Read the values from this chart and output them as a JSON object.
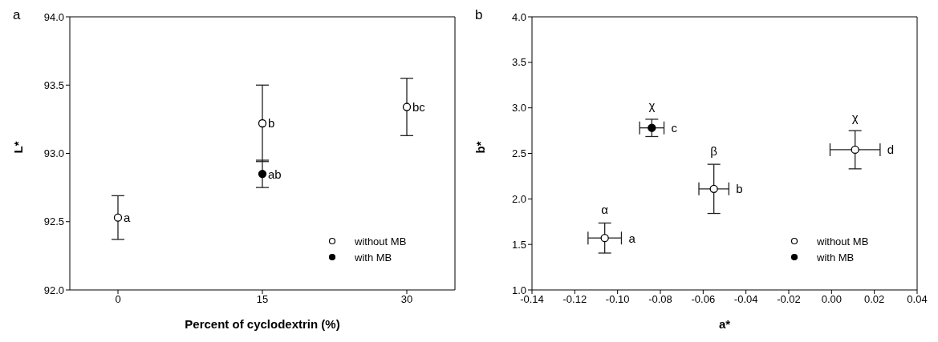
{
  "chart_data": [
    {
      "type": "scatter",
      "xlabel": "Percent of cyclodextrin (%)",
      "ylabel": "L*",
      "xlim": [
        -5,
        35
      ],
      "xticks": [
        0,
        15,
        30
      ],
      "ylim": [
        92,
        94
      ],
      "yticks": [
        {
          "value": 92,
          "label": "92.0"
        },
        {
          "value": 92.5,
          "label": "92.5"
        },
        {
          "value": 93,
          "label": "93.0"
        },
        {
          "value": 93.5,
          "label": "93.5"
        },
        {
          "value": 94,
          "label": "94.0"
        }
      ],
      "grid": false,
      "legend": "bottom right",
      "marker": "circle",
      "series": [
        {
          "name": "without MB",
          "color": "#ffffff",
          "x": [
            0,
            15,
            30
          ],
          "values": [
            92.53,
            93.22,
            93.34
          ],
          "errors": [
            0.16,
            0.28,
            0.21
          ]
        },
        {
          "name": "with MB",
          "color": "#000000",
          "x": [
            15
          ],
          "values": [
            92.85
          ],
          "errors": [
            0.1
          ]
        }
      ],
      "annotations": [
        "a",
        {
          "text": "a",
          "x": 0,
          "y": 92.53
        },
        {
          "text": "b",
          "x": 15,
          "y": 93.22
        },
        {
          "text": "bc",
          "x": 30,
          "y": 93.34
        },
        {
          "text": "ab",
          "x": 15,
          "y": 92.85
        }
      ]
    },
    {
      "type": "scatter",
      "xlabel": "a*",
      "ylabel": "b*",
      "xlim": [
        -0.14,
        0.04
      ],
      "xticks": [
        -0.14,
        -0.12,
        {
          "value": -0.1,
          "label": "-0.10"
        },
        -0.08,
        -0.06,
        -0.04,
        -0.02,
        {
          "value": 0,
          "label": "0.00"
        },
        0.02,
        0.04
      ],
      "ylim": [
        1,
        4
      ],
      "yticks": [
        {
          "value": 1,
          "label": "1.0"
        },
        1.5,
        {
          "value": 2,
          "label": "2.0"
        },
        2.5,
        {
          "value": 3,
          "label": "3.0"
        },
        3.5,
        {
          "value": 4,
          "label": "4.0"
        }
      ],
      "grid": false,
      "legend": "bottom right",
      "marker": "circle",
      "series": [
        {
          "name": "without MB",
          "color": "#ffffff",
          "x": [
            -0.106,
            -0.055,
            0.011
          ],
          "values": [
            1.57,
            2.11,
            2.54
          ],
          "errors": [
            0.165,
            0.27,
            0.21
          ],
          "xerrors": [
            0.0078,
            0.007,
            0.0117
          ]
        },
        {
          "name": "with MB",
          "color": "#000000",
          "x": [
            -0.084
          ],
          "values": [
            2.78
          ],
          "errors": [
            0.095
          ],
          "xerrors": [
            0.0057
          ]
        }
      ],
      "annotations": [
        "b",
        {
          "text": "α",
          "x": -0.106,
          "y": 1.57
        },
        {
          "text": "a",
          "x": -0.106,
          "y": 1.57
        },
        {
          "text": "χ",
          "x": -0.084,
          "y": 2.78
        },
        {
          "text": "c",
          "x": -0.084,
          "y": 2.78
        },
        {
          "text": "β",
          "x": -0.055,
          "y": 2.11
        },
        {
          "text": "b",
          "x": -0.055,
          "y": 2.11
        },
        {
          "text": "χ",
          "x": 0.011,
          "y": 2.54
        },
        {
          "text": "d",
          "x": 0.011,
          "y": 2.54
        }
      ]
    }
  ]
}
